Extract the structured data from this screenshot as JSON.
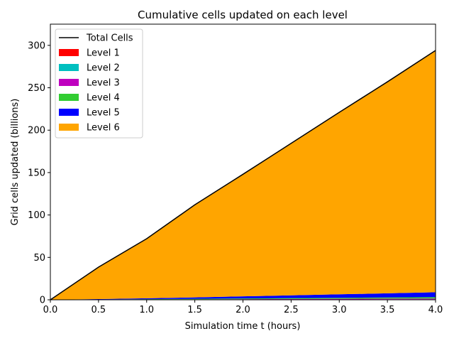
{
  "chart_data": {
    "type": "area",
    "title": "Cumulative cells updated on each level",
    "xlabel": "Simulation time t (hours)",
    "ylabel": "Grid cells updated (billions)",
    "xlim": [
      0.0,
      4.0
    ],
    "ylim": [
      0,
      325
    ],
    "x_ticks": [
      "0.0",
      "0.5",
      "1.0",
      "1.5",
      "2.0",
      "2.5",
      "3.0",
      "3.5",
      "4.0"
    ],
    "y_ticks": [
      "0",
      "50",
      "100",
      "150",
      "200",
      "250",
      "300"
    ],
    "grid": false,
    "legend_position": "top-left",
    "stacked": true,
    "x": [
      0.0,
      0.5,
      1.0,
      1.5,
      2.0,
      2.5,
      3.0,
      3.5,
      4.0
    ],
    "series": [
      {
        "name": "Level 1",
        "color": "#ff0000",
        "values": [
          0,
          0.02,
          0.04,
          0.06,
          0.08,
          0.1,
          0.12,
          0.14,
          0.16
        ]
      },
      {
        "name": "Level 2",
        "color": "#00bfbf",
        "values": [
          0,
          0.05,
          0.1,
          0.15,
          0.2,
          0.25,
          0.3,
          0.35,
          0.4
        ]
      },
      {
        "name": "Level 3",
        "color": "#bf00bf",
        "values": [
          0,
          0.12,
          0.24,
          0.36,
          0.48,
          0.6,
          0.72,
          0.84,
          0.96
        ]
      },
      {
        "name": "Level 4",
        "color": "#32cd32",
        "values": [
          0,
          0.2,
          0.4,
          0.6,
          0.8,
          1.0,
          1.2,
          1.4,
          1.6
        ]
      },
      {
        "name": "Level 5",
        "color": "#0000ff",
        "values": [
          0,
          0.5,
          1.0,
          1.7,
          2.5,
          3.3,
          4.1,
          4.9,
          5.8
        ]
      },
      {
        "name": "Level 6",
        "color": "#ffa500",
        "values": [
          0,
          37.6,
          70.2,
          109.1,
          143.9,
          179.2,
          214.6,
          249.2,
          285.1
        ]
      }
    ],
    "total": {
      "name": "Total Cells",
      "color": "#000000",
      "values": [
        0,
        38.5,
        72.0,
        112.0,
        148.0,
        184.5,
        221.0,
        257.0,
        294.0
      ]
    }
  }
}
